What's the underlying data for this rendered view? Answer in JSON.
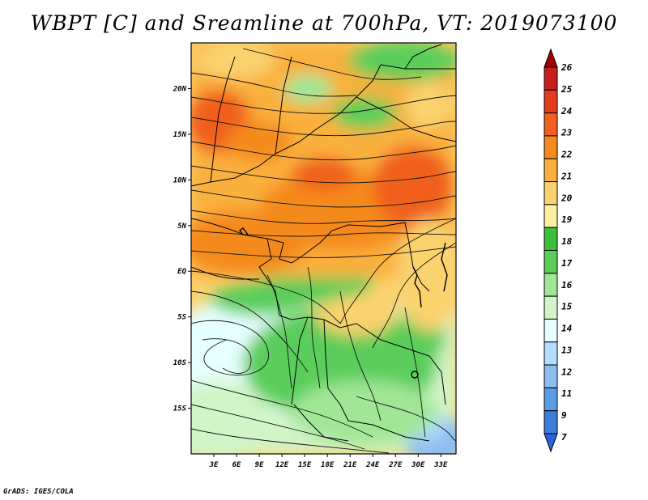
{
  "title": "WBPT [C] and Sreamline at 700hPa, VT: 2019073100",
  "credit": "GrADS: IGES/COLA",
  "map": {
    "lon_range": [
      0,
      35
    ],
    "lat_range": [
      -20,
      25
    ],
    "y_ticks": [
      {
        "lat": 20,
        "label": "20N"
      },
      {
        "lat": 15,
        "label": "15N"
      },
      {
        "lat": 10,
        "label": "10N"
      },
      {
        "lat": 5,
        "label": "5N"
      },
      {
        "lat": 0,
        "label": "EQ"
      },
      {
        "lat": -5,
        "label": "5S"
      },
      {
        "lat": -10,
        "label": "10S"
      },
      {
        "lat": -15,
        "label": "15S"
      }
    ],
    "x_ticks": [
      {
        "lon": 3,
        "label": "3E"
      },
      {
        "lon": 6,
        "label": "6E"
      },
      {
        "lon": 9,
        "label": "9E"
      },
      {
        "lon": 12,
        "label": "12E"
      },
      {
        "lon": 15,
        "label": "15E"
      },
      {
        "lon": 18,
        "label": "18E"
      },
      {
        "lon": 21,
        "label": "21E"
      },
      {
        "lon": 24,
        "label": "24E"
      },
      {
        "lon": 27,
        "label": "27E"
      },
      {
        "lon": 30,
        "label": "30E"
      },
      {
        "lon": 33,
        "label": "33E"
      }
    ]
  },
  "colorbar": {
    "levels": [
      "26",
      "25",
      "24",
      "23",
      "22",
      "21",
      "20",
      "19",
      "18",
      "17",
      "16",
      "15",
      "14",
      "13",
      "12",
      "11",
      "9",
      "7"
    ],
    "colors": [
      "#a00000",
      "#c81e1e",
      "#e63c1e",
      "#f0601e",
      "#f58a1e",
      "#fab03c",
      "#fad26e",
      "#fff0a0",
      "#3cbe3c",
      "#5acd5a",
      "#a0e696",
      "#d2f5c8",
      "#e6ffff",
      "#b4dcff",
      "#8cbef0",
      "#5a9be6",
      "#3c7ddc",
      "#2864dc"
    ]
  }
}
